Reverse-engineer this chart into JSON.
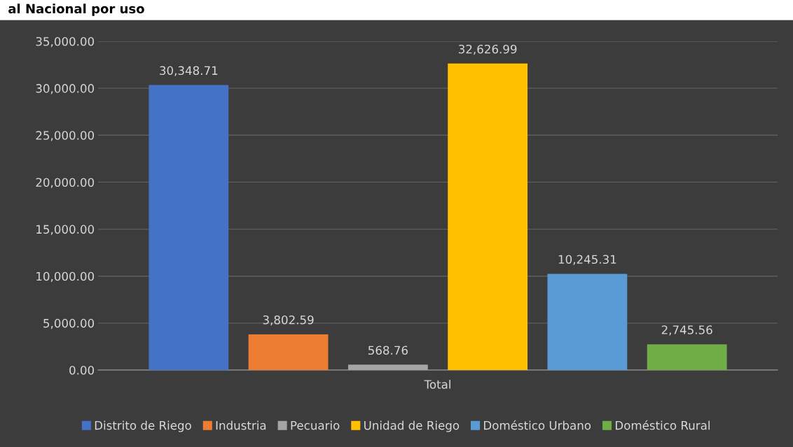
{
  "chart_data": {
    "type": "bar",
    "title": "al Nacional por uso",
    "categories": [
      "Total"
    ],
    "series": [
      {
        "name": "Distrito de Riego",
        "color": "#4472c4",
        "values": [
          30348.71
        ],
        "value_labels": [
          "30,348.71"
        ]
      },
      {
        "name": "Industria",
        "color": "#ed7d31",
        "values": [
          3802.59
        ],
        "value_labels": [
          "3,802.59"
        ]
      },
      {
        "name": "Pecuario",
        "color": "#a5a5a5",
        "values": [
          568.76
        ],
        "value_labels": [
          "568.76"
        ]
      },
      {
        "name": "Unidad de Riego",
        "color": "#ffc000",
        "values": [
          32626.99
        ],
        "value_labels": [
          "32,626.99"
        ]
      },
      {
        "name": "Doméstico Urbano",
        "color": "#5b9bd5",
        "values": [
          10245.31
        ],
        "value_labels": [
          "10,245.31"
        ]
      },
      {
        "name": "Doméstico Rural",
        "color": "#70ad47",
        "values": [
          2745.56
        ],
        "value_labels": [
          "2,745.56"
        ]
      }
    ],
    "ylim": [
      0,
      35000
    ],
    "yticks": [
      {
        "value": 0,
        "label": "0.00"
      },
      {
        "value": 5000,
        "label": "5,000.00"
      },
      {
        "value": 10000,
        "label": "10,000.00"
      },
      {
        "value": 15000,
        "label": "15,000.00"
      },
      {
        "value": 20000,
        "label": "20,000.00"
      },
      {
        "value": 25000,
        "label": "25,000.00"
      },
      {
        "value": 30000,
        "label": "30,000.00"
      },
      {
        "value": 35000,
        "label": "35,000.00"
      }
    ],
    "grid": "y",
    "legend": "bottom"
  }
}
